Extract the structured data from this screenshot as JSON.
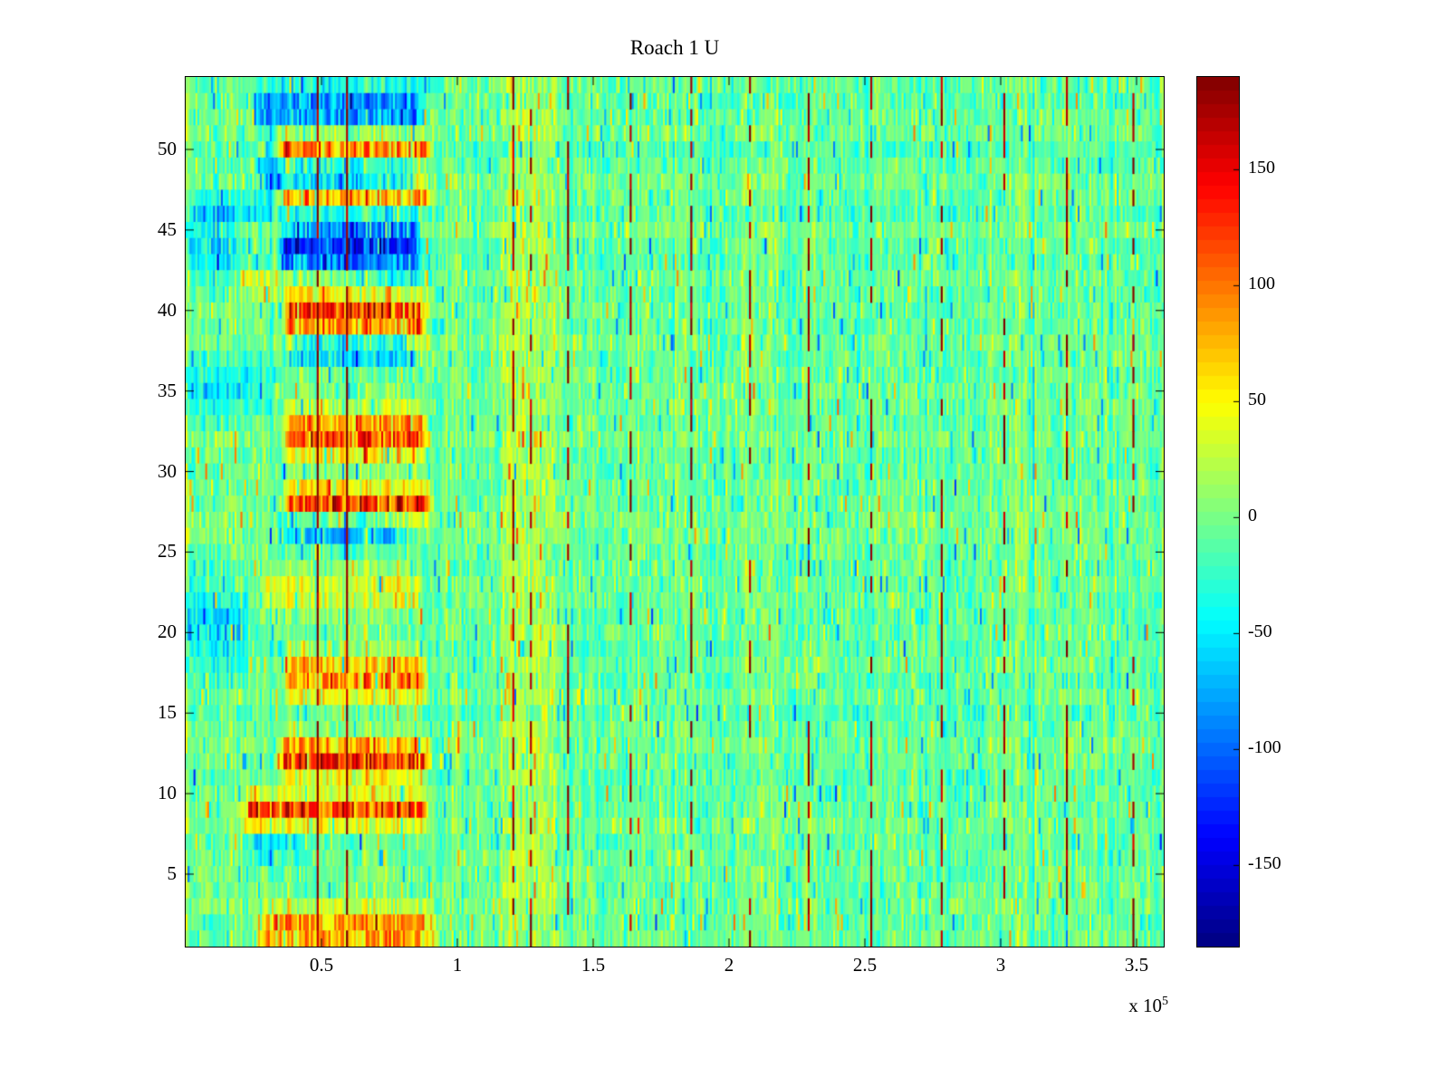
{
  "title": "Roach 1 U",
  "chart_data": {
    "type": "heatmap",
    "title": "Roach 1 U",
    "colormap": "jet",
    "background": "#ffffff",
    "x_range": [
      0,
      360000
    ],
    "x_scale_base": "x 10",
    "x_scale_exp": "5",
    "x_ticks": [
      {
        "v": 50000,
        "label": "0.5"
      },
      {
        "v": 100000,
        "label": "1"
      },
      {
        "v": 150000,
        "label": "1.5"
      },
      {
        "v": 200000,
        "label": "2"
      },
      {
        "v": 250000,
        "label": "2.5"
      },
      {
        "v": 300000,
        "label": "3"
      },
      {
        "v": 350000,
        "label": "3.5"
      }
    ],
    "y_edges": [
      0.5,
      54.5
    ],
    "y_ticks": [
      {
        "v": 5,
        "label": "5"
      },
      {
        "v": 10,
        "label": "10"
      },
      {
        "v": 15,
        "label": "15"
      },
      {
        "v": 20,
        "label": "20"
      },
      {
        "v": 25,
        "label": "25"
      },
      {
        "v": 30,
        "label": "30"
      },
      {
        "v": 35,
        "label": "35"
      },
      {
        "v": 40,
        "label": "40"
      },
      {
        "v": 45,
        "label": "45"
      },
      {
        "v": 50,
        "label": "50"
      }
    ],
    "value_range": [
      -185,
      190
    ],
    "colorbar_ticks": [
      {
        "v": 150,
        "label": "150"
      },
      {
        "v": 100,
        "label": "100"
      },
      {
        "v": 50,
        "label": "50"
      },
      {
        "v": 0,
        "label": "0"
      },
      {
        "v": -50,
        "label": "-50"
      },
      {
        "v": -100,
        "label": "-100"
      },
      {
        "v": -150,
        "label": "-150"
      }
    ],
    "grid": {
      "rows": 54,
      "cols": 500
    },
    "seed": 7,
    "noise": {
      "mean": -4,
      "std": 16,
      "col_std": 10,
      "row_std": 4,
      "speckle_p": 0.05
    },
    "h_bands": [
      {
        "y": 52.5,
        "h": 1.3,
        "x0": 28000,
        "x1": 85000,
        "amp": -85
      },
      {
        "y": 50.0,
        "h": 0.9,
        "x0": 36000,
        "x1": 88000,
        "amp": 115
      },
      {
        "y": 48.4,
        "h": 1.0,
        "x0": 30000,
        "x1": 82000,
        "amp": -80
      },
      {
        "y": 47.1,
        "h": 0.7,
        "x0": 36000,
        "x1": 88000,
        "amp": 90
      },
      {
        "y": 46.3,
        "h": 1.0,
        "x0": 5000,
        "x1": 30000,
        "amp": -40
      },
      {
        "y": 44.0,
        "h": 1.6,
        "x0": 37000,
        "x1": 84000,
        "amp": -125
      },
      {
        "y": 44.0,
        "h": 2.2,
        "x0": 1000,
        "x1": 17000,
        "amp": -45
      },
      {
        "y": 41.6,
        "h": 0.7,
        "x0": 22000,
        "x1": 60000,
        "amp": 55
      },
      {
        "y": 39.6,
        "h": 1.2,
        "x0": 39000,
        "x1": 87000,
        "amp": 135
      },
      {
        "y": 37.6,
        "h": 0.9,
        "x0": 42000,
        "x1": 80000,
        "amp": -70
      },
      {
        "y": 35.3,
        "h": 1.6,
        "x0": 1000,
        "x1": 30000,
        "amp": -40
      },
      {
        "y": 32.2,
        "h": 1.4,
        "x0": 39000,
        "x1": 86000,
        "amp": 115
      },
      {
        "y": 28.1,
        "h": 0.9,
        "x0": 39000,
        "x1": 88000,
        "amp": 140
      },
      {
        "y": 26.4,
        "h": 0.9,
        "x0": 37000,
        "x1": 76000,
        "amp": -75
      },
      {
        "y": 22.6,
        "h": 1.4,
        "x0": 30000,
        "x1": 84000,
        "amp": 40
      },
      {
        "y": 20.3,
        "h": 2.6,
        "x0": 1000,
        "x1": 20000,
        "amp": -55
      },
      {
        "y": 17.2,
        "h": 1.4,
        "x0": 39000,
        "x1": 86000,
        "amp": 95
      },
      {
        "y": 12.1,
        "h": 1.1,
        "x0": 37000,
        "x1": 87000,
        "amp": 130
      },
      {
        "y": 9.0,
        "h": 0.9,
        "x0": 24000,
        "x1": 87000,
        "amp": 120
      },
      {
        "y": 6.5,
        "h": 0.8,
        "x0": 26000,
        "x1": 44000,
        "amp": -45
      },
      {
        "y": 1.6,
        "h": 1.1,
        "x0": 30000,
        "x1": 90000,
        "amp": 105
      }
    ],
    "v_bands": [
      {
        "x0": 117000,
        "x1": 136000,
        "amp": 26
      }
    ],
    "streaks": [
      {
        "x": 48500,
        "amp": 185,
        "p": 0.8
      },
      {
        "x": 59500,
        "amp": 185,
        "p": 0.85
      },
      {
        "x": 120500,
        "amp": 175,
        "p": 0.5
      },
      {
        "x": 127000,
        "amp": 175,
        "p": 0.5
      },
      {
        "x": 140500,
        "amp": 180,
        "p": 0.55
      },
      {
        "x": 163500,
        "amp": 180,
        "p": 0.5
      },
      {
        "x": 186000,
        "amp": 180,
        "p": 0.5
      },
      {
        "x": 207500,
        "amp": 180,
        "p": 0.45
      },
      {
        "x": 229000,
        "amp": 180,
        "p": 0.55
      },
      {
        "x": 252500,
        "amp": 180,
        "p": 0.55
      },
      {
        "x": 278000,
        "amp": 180,
        "p": 0.5
      },
      {
        "x": 301000,
        "amp": 180,
        "p": 0.5
      },
      {
        "x": 324500,
        "amp": 180,
        "p": 0.55
      },
      {
        "x": 348500,
        "amp": 180,
        "p": 0.5
      }
    ]
  }
}
